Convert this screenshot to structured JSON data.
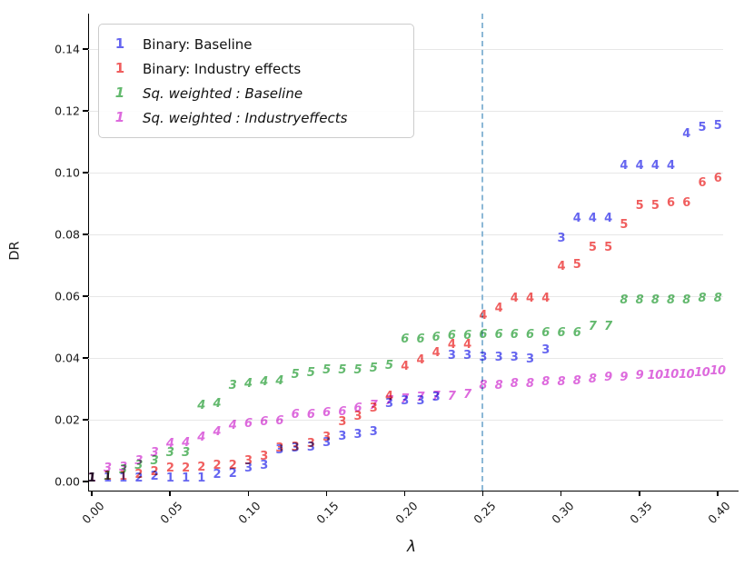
{
  "chart_data": {
    "type": "scatter",
    "title": "",
    "xlabel": "λ",
    "ylabel": "DR",
    "grid": "horizontal",
    "legend_position": "upper-left",
    "xlim": [
      -0.0023,
      0.4128
    ],
    "ylim": [
      -0.0029,
      0.1515
    ],
    "x_tick_values": [
      0.0,
      0.05,
      0.1,
      0.15,
      0.2,
      0.25,
      0.3,
      0.35,
      0.4
    ],
    "x_tick_labels": [
      "0.00",
      "0.05",
      "0.10",
      "0.15",
      "0.20",
      "0.25",
      "0.30",
      "0.35",
      "0.40"
    ],
    "y_tick_values": [
      0.0,
      0.02,
      0.04,
      0.06,
      0.08,
      0.1,
      0.12,
      0.14
    ],
    "y_tick_labels": [
      "0.00",
      "0.02",
      "0.04",
      "0.06",
      "0.08",
      "0.10",
      "0.12",
      "0.14"
    ],
    "vline": {
      "x": 0.25,
      "color": "#8cb8d6",
      "style": "dashed"
    },
    "legend": [
      {
        "marker": "1",
        "label": "Binary: Baseline",
        "color": "#6565f0",
        "italic": false
      },
      {
        "marker": "1",
        "label": "Binary: Industry effects",
        "color": "#f05e5e",
        "italic": false
      },
      {
        "marker": "1",
        "label": "Sq. weighted : Baseline",
        "color": "#63b96e",
        "italic": true
      },
      {
        "marker": "1",
        "label": "Sq. weighted : Industryeffects",
        "color": "#dd6add",
        "italic": true
      }
    ],
    "marker_note": "each point is drawn as a number glyph giving the selected number of groups",
    "x": [
      0.0,
      0.01,
      0.02,
      0.03,
      0.04,
      0.05,
      0.06,
      0.07,
      0.08,
      0.09,
      0.1,
      0.11,
      0.12,
      0.13,
      0.14,
      0.15,
      0.16,
      0.17,
      0.18,
      0.19,
      0.2,
      0.21,
      0.22,
      0.23,
      0.24,
      0.25,
      0.26,
      0.27,
      0.28,
      0.29,
      0.3,
      0.31,
      0.32,
      0.33,
      0.34,
      0.35,
      0.36,
      0.37,
      0.38,
      0.39,
      0.4
    ],
    "series": [
      {
        "name": "Binary: Baseline",
        "color": "#6565f0",
        "style": "bold",
        "labels": [
          "1",
          "1",
          "1",
          "2",
          "2",
          "1",
          "1",
          "1",
          "2",
          "2",
          "3",
          "3",
          "3",
          "3",
          "3",
          "3",
          "3",
          "3",
          "3",
          "3",
          "3",
          "3",
          "3",
          "3",
          "3",
          "3",
          "3",
          "3",
          "3",
          "3",
          "3",
          "4",
          "4",
          "4",
          "4",
          "4",
          "4",
          "4",
          "4",
          "5",
          "5"
        ],
        "y": [
          0.001,
          0.001,
          0.001,
          0.001,
          0.0015,
          0.001,
          0.001,
          0.001,
          0.002,
          0.0025,
          0.004,
          0.005,
          0.01,
          0.0105,
          0.011,
          0.0125,
          0.0145,
          0.015,
          0.016,
          0.025,
          0.026,
          0.026,
          0.027,
          0.0405,
          0.0405,
          0.04,
          0.04,
          0.04,
          0.0395,
          0.0425,
          0.0785,
          0.085,
          0.085,
          0.085,
          0.102,
          0.102,
          0.102,
          0.102,
          0.1125,
          0.1145,
          0.115
        ]
      },
      {
        "name": "Binary: Industry effects",
        "color": "#f05e5e",
        "style": "bold",
        "labels": [
          "1",
          "1",
          "1",
          "2",
          "2",
          "2",
          "2",
          "2",
          "2",
          "2",
          "3",
          "3",
          "3",
          "3",
          "3",
          "3",
          "3",
          "3",
          "3",
          "4",
          "4",
          "4",
          "4",
          "4",
          "4",
          "4",
          "4",
          "4",
          "4",
          "4",
          "4",
          "5",
          "5",
          "5",
          "5",
          "5",
          "5",
          "6",
          "6",
          "6",
          "6"
        ],
        "y": [
          0.001,
          0.0015,
          0.0015,
          0.002,
          0.003,
          0.004,
          0.004,
          0.0045,
          0.005,
          0.005,
          0.0065,
          0.008,
          0.0105,
          0.011,
          0.012,
          0.014,
          0.019,
          0.021,
          0.0235,
          0.0275,
          0.037,
          0.039,
          0.0415,
          0.044,
          0.044,
          0.0535,
          0.056,
          0.059,
          0.059,
          0.059,
          0.0695,
          0.07,
          0.0755,
          0.0755,
          0.083,
          0.089,
          0.089,
          0.09,
          0.09,
          0.0965,
          0.098
        ]
      },
      {
        "name": "Sq. weighted : Baseline",
        "color": "#63b96e",
        "style": "italic",
        "labels": [
          "1",
          "1",
          "3",
          "3",
          "3",
          "3",
          "3",
          "4",
          "4",
          "3",
          "4",
          "4",
          "4",
          "5",
          "5",
          "5",
          "5",
          "5",
          "5",
          "5",
          "6",
          "6",
          "6",
          "6",
          "6",
          "6",
          "6",
          "6",
          "6",
          "6",
          "6",
          "6",
          "7",
          "7",
          "8",
          "8",
          "8",
          "8",
          "8",
          "8",
          "8"
        ],
        "y": [
          0.001,
          0.0015,
          0.0035,
          0.005,
          0.0065,
          0.009,
          0.009,
          0.0245,
          0.025,
          0.031,
          0.0315,
          0.032,
          0.0325,
          0.0345,
          0.035,
          0.036,
          0.036,
          0.036,
          0.0365,
          0.0375,
          0.046,
          0.046,
          0.0465,
          0.047,
          0.047,
          0.0475,
          0.0475,
          0.0475,
          0.0475,
          0.048,
          0.048,
          0.048,
          0.05,
          0.05,
          0.0585,
          0.0585,
          0.0585,
          0.0585,
          0.0585,
          0.059,
          0.059
        ]
      },
      {
        "name": "Sq. weighted : Industryeffects",
        "color": "#dd6add",
        "style": "italic",
        "labels": [
          "1",
          "3",
          "3",
          "3",
          "3",
          "4",
          "4",
          "4",
          "4",
          "4",
          "6",
          "6",
          "6",
          "6",
          "6",
          "6",
          "6",
          "6",
          "7",
          "7",
          "7",
          "7",
          "7",
          "7",
          "7",
          "8",
          "8",
          "8",
          "8",
          "8",
          "8",
          "8",
          "8",
          "9",
          "9",
          "9",
          "10",
          "10",
          "10",
          "10",
          "10"
        ],
        "y": [
          0.001,
          0.004,
          0.0045,
          0.0065,
          0.009,
          0.012,
          0.0125,
          0.014,
          0.016,
          0.018,
          0.0185,
          0.019,
          0.0195,
          0.0215,
          0.0215,
          0.022,
          0.0225,
          0.0235,
          0.0245,
          0.026,
          0.0265,
          0.027,
          0.0275,
          0.0275,
          0.028,
          0.031,
          0.031,
          0.0315,
          0.0315,
          0.032,
          0.032,
          0.0325,
          0.033,
          0.0335,
          0.0335,
          0.034,
          0.034,
          0.0345,
          0.0345,
          0.035,
          0.0355
        ]
      }
    ]
  }
}
